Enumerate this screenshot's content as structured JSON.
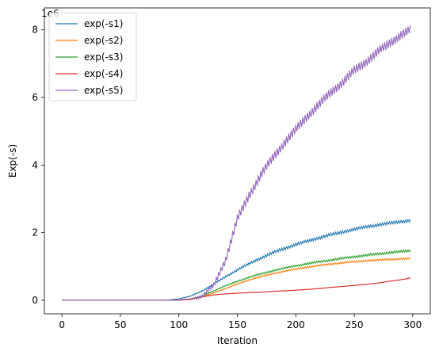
{
  "chart_data": {
    "type": "line",
    "xlabel": "Iteration",
    "ylabel": "Exp(-s)",
    "offset_text": "1e6",
    "xlim": [
      -15,
      315
    ],
    "ylim": [
      -400000,
      8650000
    ],
    "xticks": [
      0,
      50,
      100,
      150,
      200,
      250,
      300
    ],
    "xtick_labels": [
      "0",
      "50",
      "100",
      "150",
      "200",
      "250",
      "300"
    ],
    "yticks": [
      0,
      2000000,
      4000000,
      6000000,
      8000000
    ],
    "ytick_labels": [
      "0",
      "2",
      "4",
      "6",
      "8"
    ],
    "legend_position": "upper-left",
    "series": [
      {
        "name": "exp(-s1)",
        "color": "#1f77b4",
        "points": [
          [
            0,
            0
          ],
          [
            80,
            0
          ],
          [
            90,
            5000
          ],
          [
            100,
            40000
          ],
          [
            110,
            120000
          ],
          [
            120,
            280000
          ],
          [
            130,
            480000
          ],
          [
            140,
            700000
          ],
          [
            150,
            900000
          ],
          [
            160,
            1080000
          ],
          [
            170,
            1250000
          ],
          [
            180,
            1400000
          ],
          [
            190,
            1530000
          ],
          [
            200,
            1650000
          ],
          [
            210,
            1750000
          ],
          [
            220,
            1850000
          ],
          [
            230,
            1940000
          ],
          [
            240,
            2020000
          ],
          [
            250,
            2100000
          ],
          [
            260,
            2170000
          ],
          [
            270,
            2230000
          ],
          [
            280,
            2280000
          ],
          [
            290,
            2330000
          ],
          [
            298,
            2360000
          ]
        ],
        "jitter": 45000
      },
      {
        "name": "exp(-s2)",
        "color": "#ff7f0e",
        "points": [
          [
            0,
            0
          ],
          [
            95,
            0
          ],
          [
            100,
            5000
          ],
          [
            110,
            30000
          ],
          [
            120,
            100000
          ],
          [
            130,
            220000
          ],
          [
            140,
            350000
          ],
          [
            150,
            480000
          ],
          [
            160,
            600000
          ],
          [
            170,
            700000
          ],
          [
            180,
            780000
          ],
          [
            190,
            860000
          ],
          [
            200,
            920000
          ],
          [
            210,
            980000
          ],
          [
            220,
            1030000
          ],
          [
            230,
            1070000
          ],
          [
            240,
            1110000
          ],
          [
            250,
            1140000
          ],
          [
            260,
            1170000
          ],
          [
            270,
            1190000
          ],
          [
            280,
            1210000
          ],
          [
            290,
            1225000
          ],
          [
            298,
            1235000
          ]
        ],
        "jitter": 30000
      },
      {
        "name": "exp(-s3)",
        "color": "#2ca02c",
        "points": [
          [
            0,
            0
          ],
          [
            95,
            0
          ],
          [
            100,
            5000
          ],
          [
            110,
            40000
          ],
          [
            120,
            130000
          ],
          [
            130,
            280000
          ],
          [
            140,
            430000
          ],
          [
            150,
            560000
          ],
          [
            160,
            680000
          ],
          [
            170,
            780000
          ],
          [
            180,
            870000
          ],
          [
            190,
            950000
          ],
          [
            200,
            1020000
          ],
          [
            210,
            1080000
          ],
          [
            220,
            1140000
          ],
          [
            230,
            1190000
          ],
          [
            240,
            1240000
          ],
          [
            250,
            1290000
          ],
          [
            260,
            1330000
          ],
          [
            270,
            1370000
          ],
          [
            280,
            1410000
          ],
          [
            290,
            1440000
          ],
          [
            298,
            1470000
          ]
        ],
        "jitter": 35000
      },
      {
        "name": "exp(-s4)",
        "color": "#d62728",
        "points": [
          [
            0,
            0
          ],
          [
            90,
            0
          ],
          [
            100,
            10000
          ],
          [
            110,
            40000
          ],
          [
            120,
            100000
          ],
          [
            130,
            160000
          ],
          [
            140,
            190000
          ],
          [
            150,
            210000
          ],
          [
            160,
            225000
          ],
          [
            170,
            240000
          ],
          [
            180,
            260000
          ],
          [
            190,
            280000
          ],
          [
            200,
            300000
          ],
          [
            210,
            320000
          ],
          [
            220,
            350000
          ],
          [
            230,
            380000
          ],
          [
            240,
            410000
          ],
          [
            250,
            440000
          ],
          [
            260,
            470000
          ],
          [
            270,
            510000
          ],
          [
            280,
            560000
          ],
          [
            290,
            610000
          ],
          [
            298,
            660000
          ]
        ],
        "jitter": 12000
      },
      {
        "name": "exp(-s5)",
        "color": "#9467bd",
        "points": [
          [
            0,
            0
          ],
          [
            100,
            0
          ],
          [
            110,
            20000
          ],
          [
            120,
            120000
          ],
          [
            130,
            450000
          ],
          [
            140,
            1200000
          ],
          [
            145,
            1800000
          ],
          [
            150,
            2400000
          ],
          [
            160,
            3100000
          ],
          [
            170,
            3700000
          ],
          [
            180,
            4200000
          ],
          [
            190,
            4650000
          ],
          [
            200,
            5050000
          ],
          [
            210,
            5450000
          ],
          [
            220,
            5800000
          ],
          [
            230,
            6150000
          ],
          [
            240,
            6450000
          ],
          [
            250,
            6800000
          ],
          [
            260,
            7050000
          ],
          [
            270,
            7350000
          ],
          [
            280,
            7600000
          ],
          [
            290,
            7850000
          ],
          [
            298,
            8000000
          ]
        ],
        "jitter": 140000
      }
    ]
  }
}
